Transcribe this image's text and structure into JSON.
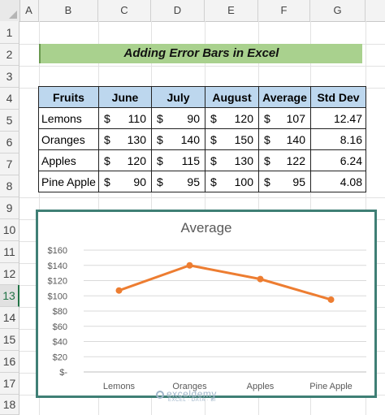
{
  "sheet": {
    "columns": [
      "A",
      "B",
      "C",
      "D",
      "E",
      "F",
      "G"
    ],
    "rows": [
      "1",
      "2",
      "3",
      "4",
      "5",
      "6",
      "7",
      "8",
      "9",
      "10",
      "11",
      "12",
      "13",
      "14",
      "15",
      "16",
      "17",
      "18"
    ],
    "active_row": "13"
  },
  "banner": {
    "title": "Adding Error Bars in Excel"
  },
  "table": {
    "headers": [
      "Fruits",
      "June",
      "July",
      "August",
      "Average",
      "Std Dev"
    ],
    "currency": "$",
    "rows": [
      {
        "fruit": "Lemons",
        "june": "110",
        "july": "90",
        "august": "120",
        "average": "107",
        "std": "12.47"
      },
      {
        "fruit": "Oranges",
        "june": "130",
        "july": "140",
        "august": "150",
        "average": "140",
        "std": "8.16"
      },
      {
        "fruit": "Apples",
        "june": "120",
        "july": "115",
        "august": "130",
        "average": "122",
        "std": "6.24"
      },
      {
        "fruit": "Pine Apple",
        "june": "90",
        "july": "95",
        "august": "100",
        "average": "95",
        "std": "4.08"
      }
    ]
  },
  "chart_data": {
    "type": "line",
    "title": "Average",
    "categories": [
      "Lemons",
      "Oranges",
      "Apples",
      "Pine Apple"
    ],
    "series": [
      {
        "values": [
          107,
          140,
          122,
          95
        ]
      }
    ],
    "ylim": [
      0,
      160
    ],
    "yticks": [
      "$-",
      "$20",
      "$40",
      "$60",
      "$80",
      "$100",
      "$120",
      "$140",
      "$160"
    ],
    "grid": true,
    "line_color": "#ed7d31"
  },
  "watermark": {
    "brand": "exceldemy",
    "tagline": "EXCEL · DATA · BI"
  }
}
